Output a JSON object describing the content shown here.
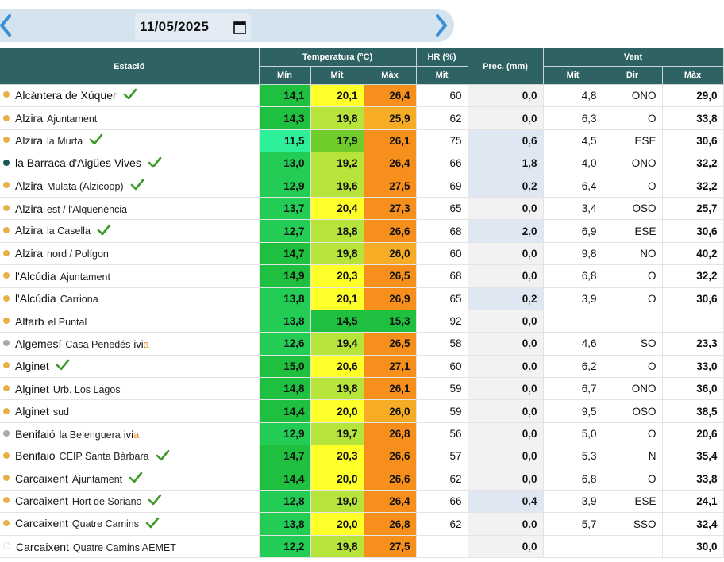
{
  "date": {
    "value": "11/05/2025"
  },
  "headers": {
    "estacio": "Estació",
    "temperatura": "Temperatura (°C)",
    "hr": "HR (%)",
    "prec": "Prec. (mm)",
    "vent": "Vent",
    "min": "Mín",
    "mit": "Mit",
    "max": "Màx",
    "hr_mit": "Mit",
    "vent_mit": "Mit",
    "vent_dir": "Dir",
    "vent_max": "Màx"
  },
  "colors": {
    "header": "#2f6262",
    "dot_orange": "#e6b14a",
    "dot_gray": "#a9a9a9",
    "dot_teal": "#1e5a5a",
    "check": "#3e9a2a"
  },
  "rows": [
    {
      "name": "Alcàntera de Xúquer",
      "sub": "",
      "dot": "orange",
      "check": true,
      "min": "14,1",
      "mit": "20,1",
      "max": "26,4",
      "minc": "#1fbf3f",
      "mitc": "#ffff2a",
      "maxc": "#f78f1d",
      "hr": "60",
      "prec": "0,0",
      "pc": false,
      "vmit": "4,8",
      "dir": "ONO",
      "vmax": "29,0"
    },
    {
      "name": "Alzira",
      "sub": "Ajuntament",
      "dot": "orange",
      "check": false,
      "min": "14,3",
      "mit": "19,8",
      "max": "25,9",
      "minc": "#1fbf3f",
      "mitc": "#b7e43a",
      "maxc": "#f6ad25",
      "hr": "62",
      "prec": "0,0",
      "pc": false,
      "vmit": "6,3",
      "dir": "O",
      "vmax": "33,8"
    },
    {
      "name": "Alzira",
      "sub": "la Murta",
      "dot": "orange",
      "check": true,
      "min": "11,5",
      "mit": "17,9",
      "max": "26,1",
      "minc": "#2ef09a",
      "mitc": "#6fcc2a",
      "maxc": "#f78f1d",
      "hr": "75",
      "prec": "0,6",
      "pc": true,
      "vmit": "4,5",
      "dir": "ESE",
      "vmax": "30,6"
    },
    {
      "name": "la Barraca d'Aigües Vives",
      "sub": "",
      "dot": "teal",
      "check": true,
      "min": "13,0",
      "mit": "19,2",
      "max": "26,4",
      "minc": "#22cc55",
      "mitc": "#b7e43a",
      "maxc": "#f78f1d",
      "hr": "66",
      "prec": "1,8",
      "pc": true,
      "vmit": "4,0",
      "dir": "ONO",
      "vmax": "32,2"
    },
    {
      "name": "Alzira",
      "sub": "Mulata (Alzicoop)",
      "dot": "orange",
      "check": true,
      "min": "12,9",
      "mit": "19,6",
      "max": "27,5",
      "minc": "#22cc55",
      "mitc": "#b7e43a",
      "maxc": "#f78f1d",
      "hr": "69",
      "prec": "0,2",
      "pc": true,
      "vmit": "6,4",
      "dir": "O",
      "vmax": "32,2"
    },
    {
      "name": "Alzira",
      "sub": "est / l'Alquenència",
      "dot": "orange",
      "check": false,
      "min": "13,7",
      "mit": "20,4",
      "max": "27,3",
      "minc": "#22cc55",
      "mitc": "#ffff2a",
      "maxc": "#f78f1d",
      "hr": "65",
      "prec": "0,0",
      "pc": false,
      "vmit": "3,4",
      "dir": "OSO",
      "vmax": "25,7"
    },
    {
      "name": "Alzira",
      "sub": "la Casella",
      "dot": "orange",
      "check": true,
      "min": "12,7",
      "mit": "18,8",
      "max": "26,6",
      "minc": "#22cc55",
      "mitc": "#b7e43a",
      "maxc": "#f78f1d",
      "hr": "68",
      "prec": "2,0",
      "pc": true,
      "vmit": "6,9",
      "dir": "ESE",
      "vmax": "30,6"
    },
    {
      "name": "Alzira",
      "sub": "nord / Polígon",
      "dot": "orange",
      "check": false,
      "min": "14,7",
      "mit": "19,8",
      "max": "26,0",
      "minc": "#1fbf3f",
      "mitc": "#b7e43a",
      "maxc": "#f6ad25",
      "hr": "60",
      "prec": "0,0",
      "pc": false,
      "vmit": "9,8",
      "dir": "NO",
      "vmax": "40,2"
    },
    {
      "name": "l'Alcúdia",
      "sub": "Ajuntament",
      "dot": "orange",
      "check": false,
      "min": "14,9",
      "mit": "20,3",
      "max": "26,5",
      "minc": "#1fbf3f",
      "mitc": "#ffff2a",
      "maxc": "#f78f1d",
      "hr": "68",
      "prec": "0,0",
      "pc": false,
      "vmit": "6,8",
      "dir": "O",
      "vmax": "32,2"
    },
    {
      "name": "l'Alcúdia",
      "sub": "Carriona",
      "dot": "orange",
      "check": false,
      "min": "13,8",
      "mit": "20,1",
      "max": "26,9",
      "minc": "#22cc55",
      "mitc": "#ffff2a",
      "maxc": "#f78f1d",
      "hr": "65",
      "prec": "0,2",
      "pc": true,
      "vmit": "3,9",
      "dir": "O",
      "vmax": "30,6"
    },
    {
      "name": "Alfarb",
      "sub": "el Puntal",
      "dot": "orange",
      "check": false,
      "min": "13,8",
      "mit": "14,5",
      "max": "15,3",
      "minc": "#22cc55",
      "mitc": "#1fbf3f",
      "maxc": "#1fbf3f",
      "hr": "92",
      "prec": "0,0",
      "pc": false,
      "vmit": "",
      "dir": "",
      "vmax": ""
    },
    {
      "name": "Algemesí",
      "sub": "Casa Penedés",
      "dot": "gray",
      "check": false,
      "ivia": true,
      "min": "12,6",
      "mit": "19,4",
      "max": "26,5",
      "minc": "#22cc55",
      "mitc": "#b7e43a",
      "maxc": "#f78f1d",
      "hr": "58",
      "prec": "0,0",
      "pc": false,
      "vmit": "4,6",
      "dir": "SO",
      "vmax": "23,3"
    },
    {
      "name": "Alginet",
      "sub": "",
      "dot": "orange",
      "check": true,
      "min": "15,0",
      "mit": "20,6",
      "max": "27,1",
      "minc": "#1fbf3f",
      "mitc": "#ffff2a",
      "maxc": "#f78f1d",
      "hr": "60",
      "prec": "0,0",
      "pc": false,
      "vmit": "6,2",
      "dir": "O",
      "vmax": "33,0"
    },
    {
      "name": "Alginet",
      "sub": "Urb. Los Lagos",
      "dot": "orange",
      "check": false,
      "min": "14,8",
      "mit": "19,8",
      "max": "26,1",
      "minc": "#1fbf3f",
      "mitc": "#b7e43a",
      "maxc": "#f78f1d",
      "hr": "59",
      "prec": "0,0",
      "pc": false,
      "vmit": "6,7",
      "dir": "ONO",
      "vmax": "36,0"
    },
    {
      "name": "Alginet",
      "sub": "sud",
      "dot": "orange",
      "check": false,
      "min": "14,4",
      "mit": "20,0",
      "max": "26,0",
      "minc": "#1fbf3f",
      "mitc": "#ffff2a",
      "maxc": "#f6ad25",
      "hr": "59",
      "prec": "0,0",
      "pc": false,
      "vmit": "9,5",
      "dir": "OSO",
      "vmax": "38,5"
    },
    {
      "name": "Benifaió",
      "sub": "la Belenguera",
      "dot": "gray",
      "check": false,
      "ivia": true,
      "min": "12,9",
      "mit": "19,7",
      "max": "26,8",
      "minc": "#22cc55",
      "mitc": "#b7e43a",
      "maxc": "#f78f1d",
      "hr": "56",
      "prec": "0,0",
      "pc": false,
      "vmit": "5,0",
      "dir": "O",
      "vmax": "20,6"
    },
    {
      "name": "Benifaió",
      "sub": "CEIP Santa Bàrbara",
      "dot": "orange",
      "check": true,
      "min": "14,7",
      "mit": "20,3",
      "max": "26,6",
      "minc": "#1fbf3f",
      "mitc": "#ffff2a",
      "maxc": "#f78f1d",
      "hr": "57",
      "prec": "0,0",
      "pc": false,
      "vmit": "5,3",
      "dir": "N",
      "vmax": "35,4"
    },
    {
      "name": "Carcaixent",
      "sub": "Ajuntament",
      "dot": "orange",
      "check": true,
      "min": "14,4",
      "mit": "20,0",
      "max": "26,6",
      "minc": "#1fbf3f",
      "mitc": "#ffff2a",
      "maxc": "#f78f1d",
      "hr": "62",
      "prec": "0,0",
      "pc": false,
      "vmit": "6,8",
      "dir": "O",
      "vmax": "33,8"
    },
    {
      "name": "Carcaixent",
      "sub": "Hort de Soriano",
      "dot": "orange",
      "check": true,
      "min": "12,8",
      "mit": "19,0",
      "max": "26,4",
      "minc": "#22cc55",
      "mitc": "#b7e43a",
      "maxc": "#f78f1d",
      "hr": "66",
      "prec": "0,4",
      "pc": true,
      "vmit": "3,9",
      "dir": "ESE",
      "vmax": "24,1"
    },
    {
      "name": "Carcaixent",
      "sub": "Quatre Camins",
      "dot": "orange",
      "check": true,
      "min": "13,8",
      "mit": "20,0",
      "max": "26,8",
      "minc": "#22cc55",
      "mitc": "#ffff2a",
      "maxc": "#f78f1d",
      "hr": "62",
      "prec": "0,0",
      "pc": false,
      "vmit": "5,7",
      "dir": "SSO",
      "vmax": "32,4"
    },
    {
      "name": "Carcaixent",
      "sub": "Quatre Camins AEMET",
      "dot": "empty",
      "check": false,
      "min": "12,2",
      "mit": "19,8",
      "max": "27,5",
      "minc": "#22cc55",
      "mitc": "#b7e43a",
      "maxc": "#f78f1d",
      "hr": "",
      "prec": "0,0",
      "pc": false,
      "vmit": "",
      "dir": "",
      "vmax": "30,0"
    }
  ],
  "ivia_label": {
    "main": "ivi",
    "accent": "a"
  }
}
